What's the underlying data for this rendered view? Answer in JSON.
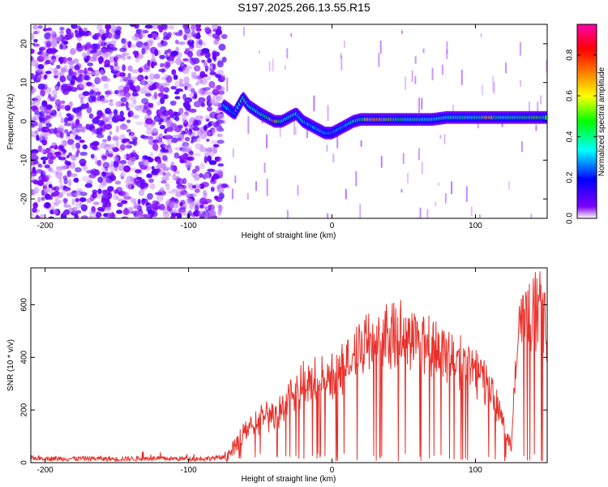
{
  "chart_data": [
    {
      "type": "heatmap",
      "title": "S197.2025.266.13.55.R15",
      "xlabel": "Height of straight line (km)",
      "ylabel": "Frequency (Hz)",
      "xlim": [
        -210,
        150
      ],
      "ylim": [
        -25,
        25
      ],
      "x_ticks": [
        -200,
        -100,
        0,
        100
      ],
      "x_tick_labels": [
        "-200",
        "-100",
        "0",
        "100"
      ],
      "y_ticks": [
        -20,
        -10,
        0,
        10,
        20
      ],
      "y_tick_labels": [
        "-20",
        "-10",
        "0",
        "10",
        "20"
      ],
      "noise_region_x": [
        -210,
        -75
      ],
      "signal_ridge": {
        "x": [
          -75,
          -68,
          -62,
          -58,
          -50,
          -45,
          -40,
          -35,
          -30,
          -25,
          -20,
          -15,
          -10,
          -5,
          0,
          5,
          10,
          15,
          20,
          30,
          40,
          50,
          60,
          70,
          80,
          90,
          100,
          110,
          120,
          130,
          140,
          150
        ],
        "freq": [
          4,
          2,
          6,
          4,
          2,
          1,
          0,
          0,
          1,
          2,
          0,
          -1,
          -2,
          -3,
          -3,
          -2,
          -1,
          0,
          0.5,
          0.5,
          0.5,
          0.5,
          0.5,
          0.5,
          1,
          1,
          1,
          1,
          1,
          1,
          1,
          1
        ],
        "amplitude": [
          0.4,
          0.3,
          0.5,
          0.45,
          0.45,
          0.5,
          0.9,
          0.5,
          0.45,
          0.4,
          0.4,
          0.35,
          0.35,
          0.35,
          0.35,
          0.35,
          0.4,
          0.45,
          0.5,
          0.9,
          0.6,
          0.5,
          0.45,
          0.45,
          0.45,
          0.45,
          0.45,
          0.7,
          0.45,
          0.5,
          0.6,
          0.5
        ]
      },
      "colorbar": {
        "label": "Normalized spectral amplitude",
        "range": [
          0,
          0.95
        ],
        "ticks": [
          0.0,
          0.2,
          0.4,
          0.6,
          0.8
        ],
        "tick_labels": [
          "0.0",
          "0.2",
          "0.4",
          "0.6",
          "0.8"
        ],
        "colors": [
          "#ffffff",
          "#7f00ff",
          "#0000ff",
          "#00ffff",
          "#00ff00",
          "#ffff00",
          "#ff8000",
          "#ff0000",
          "#ff00aa"
        ]
      }
    },
    {
      "type": "line",
      "xlabel": "Height of straight line (km)",
      "ylabel": "SNR (10 * v/v)",
      "xlim": [
        -210,
        150
      ],
      "ylim": [
        0,
        740
      ],
      "x_ticks": [
        -200,
        -100,
        0,
        100
      ],
      "x_tick_labels": [
        "-200",
        "-100",
        "0",
        "100"
      ],
      "y_ticks": [
        0,
        200,
        400,
        600
      ],
      "y_tick_labels": [
        "0",
        "200",
        "400",
        "600"
      ],
      "color": "#e8302a",
      "series": [
        {
          "name": "SNR",
          "x": [
            -210,
            -190,
            -170,
            -150,
            -130,
            -110,
            -90,
            -75,
            -70,
            -65,
            -60,
            -55,
            -50,
            -45,
            -40,
            -35,
            -30,
            -25,
            -20,
            -15,
            -10,
            -5,
            0,
            5,
            10,
            15,
            20,
            25,
            30,
            35,
            40,
            45,
            50,
            55,
            60,
            65,
            70,
            75,
            80,
            85,
            90,
            95,
            100,
            105,
            110,
            115,
            120,
            125,
            130,
            135,
            140,
            145,
            150
          ],
          "values": [
            18,
            15,
            16,
            14,
            16,
            15,
            15,
            20,
            40,
            90,
            150,
            140,
            180,
            200,
            190,
            230,
            270,
            300,
            320,
            330,
            330,
            340,
            350,
            380,
            420,
            450,
            480,
            500,
            520,
            530,
            540,
            530,
            550,
            520,
            510,
            500,
            490,
            470,
            450,
            430,
            410,
            400,
            380,
            350,
            300,
            250,
            150,
            60,
            550,
            600,
            620,
            650,
            500
          ]
        }
      ]
    }
  ]
}
